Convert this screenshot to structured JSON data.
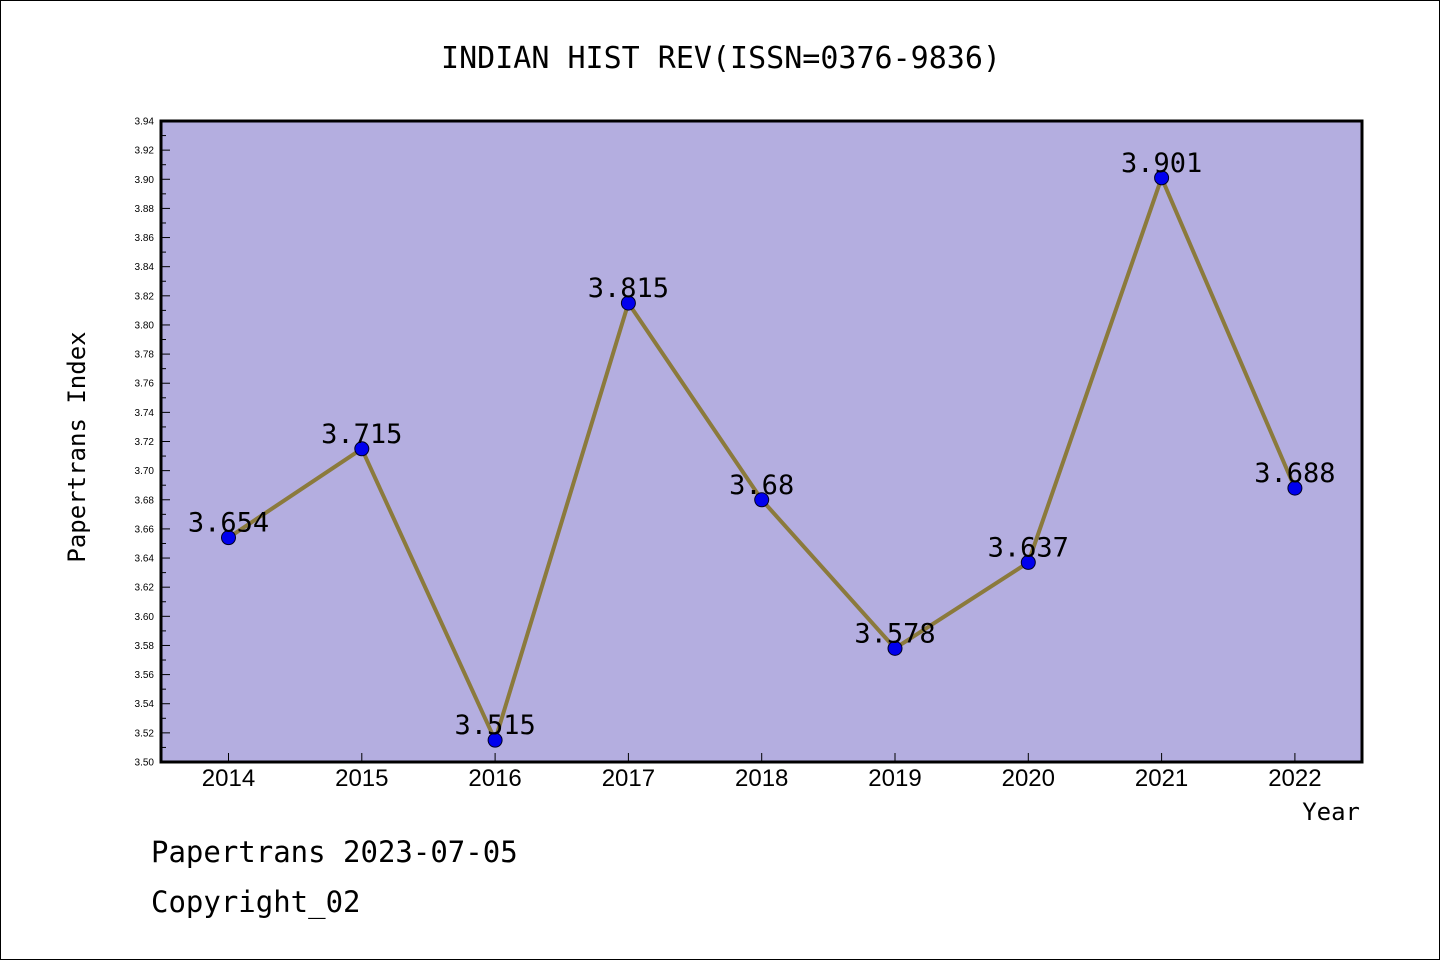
{
  "chart_data": {
    "type": "line",
    "title": "INDIAN HIST REV(ISSN=0376-9836)",
    "xlabel": "Year",
    "ylabel": "Papertrans Index",
    "categories": [
      "2014",
      "2015",
      "2016",
      "2017",
      "2018",
      "2019",
      "2020",
      "2021",
      "2022"
    ],
    "series": [
      {
        "values": [
          3.654,
          3.715,
          3.515,
          3.815,
          3.68,
          3.578,
          3.637,
          3.901,
          3.688
        ],
        "labels": [
          "3.654",
          "3.715",
          "3.515",
          "3.815",
          "3.68",
          "3.578",
          "3.637",
          "3.901",
          "3.688"
        ],
        "line_color": "#8b7a3c",
        "marker_color": "#0000ee"
      }
    ],
    "ylim": [
      3.5,
      3.94
    ],
    "yticks": [
      "3.50",
      "3.52",
      "3.54",
      "3.56",
      "3.58",
      "3.60",
      "3.62",
      "3.64",
      "3.66",
      "3.68",
      "3.70",
      "3.72",
      "3.74",
      "3.76",
      "3.78",
      "3.80",
      "3.82",
      "3.84",
      "3.86",
      "3.88",
      "3.90",
      "3.92",
      "3.94"
    ],
    "plot_background": "#b4aee0",
    "grid": false,
    "legend": "none"
  },
  "footer": {
    "line1": "Papertrans 2023-07-05",
    "line2": "Copyright_02"
  }
}
